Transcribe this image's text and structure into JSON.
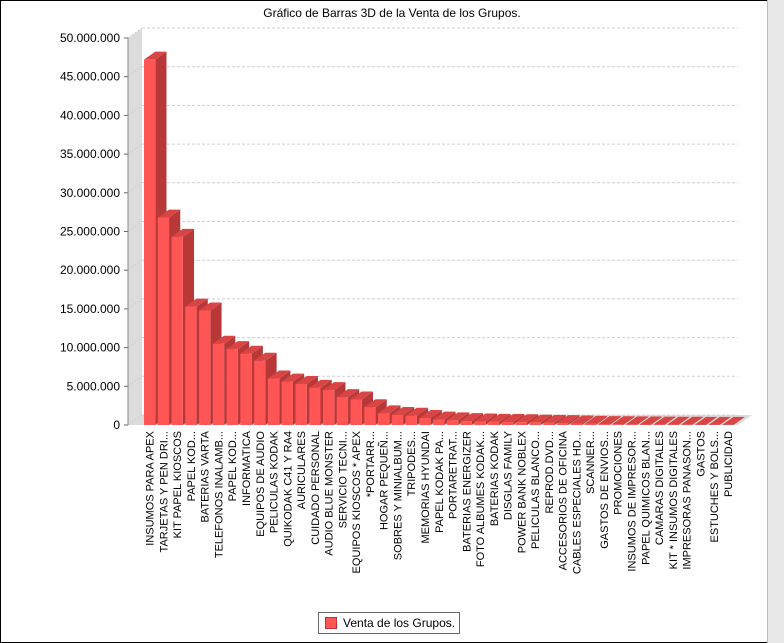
{
  "chart_data": {
    "type": "bar",
    "title": "Gráfico de Barras 3D de la Venta de los Grupos.",
    "categories": [
      "INSUMOS PARA APEX",
      "TARJETAS Y PEN DRI...",
      "KIT PAPEL KIOSCOS",
      "PAPEL KOD...",
      "BATERIAS VARTA",
      "TELEFONOS INALAMB...",
      "PAPEL KOD...",
      "INFORMATICA",
      "EQUIPOS DE AUDIO",
      "PELICULAS KODAK",
      "QUIKODAK C41 Y RA4",
      "AURICULARES",
      "CUIDADO PERSONAL",
      "AUDIO BLUE MONSTER",
      "SERVICIO TECNI...",
      "EQUIPOS KIOSCOS * APEX",
      "*PORTARR...",
      "HOGAR PEQUEÑ...",
      "SOBRES Y MINIALBUM...",
      "TRIPODES...",
      "MEMORIAS HYUNDAI",
      "PAPEL KODAK PA...",
      "PORTARETRAT...",
      "BATERIAS ENERGIZER",
      "FOTO ALBUMES KODAK...",
      "BATERIAS KODAK",
      "DISGLAS FAMILY",
      "POWER BANK NOBLEX",
      "PELICULAS BLANCO...",
      "REPROD.DVD...",
      "ACCESORIOS DE OFICINA",
      "CABLES ESPECIALES HD...",
      "SCANNER...",
      "GASTOS DE ENVIOS...",
      "PROMOCIONES",
      "INSUMOS DE IMPRESOR...",
      "PAPEL QUIMICOS BLAN...",
      "CAMARAS DIGITALES",
      "KIT * INSUMOS DIGITALES",
      "IMPRESORAS PANASON...",
      "GASTOS",
      "ESTUCHES Y BOLS...",
      "PUBLICIDAD"
    ],
    "series": [
      {
        "name": "Venta de los Grupos.",
        "values": [
          47200000,
          26800000,
          24300000,
          15300000,
          14800000,
          10500000,
          9800000,
          9200000,
          8300000,
          6000000,
          5600000,
          5300000,
          4800000,
          4500000,
          3600000,
          3300000,
          2300000,
          1500000,
          1300000,
          1200000,
          900000,
          700000,
          600000,
          500000,
          450000,
          400000,
          380000,
          350000,
          300000,
          270000,
          250000,
          200000,
          150000,
          120000,
          100000,
          80000,
          60000,
          50000,
          40000,
          30000,
          20000,
          15000,
          10000
        ]
      }
    ],
    "yticks": [
      "0",
      "5.000.000",
      "10.000.000",
      "15.000.000",
      "20.000.000",
      "25.000.000",
      "30.000.000",
      "35.000.000",
      "40.000.000",
      "45.000.000",
      "50.000.000"
    ],
    "ylim": [
      0,
      50000000
    ],
    "grid": true,
    "legend_position": "bottom",
    "colors": {
      "bar_front": "#ff5555",
      "bar_top": "#d94545",
      "bar_side": "#b83838",
      "wall": "#dcdcdc"
    }
  },
  "legend": {
    "label": "Venta de los Grupos."
  }
}
